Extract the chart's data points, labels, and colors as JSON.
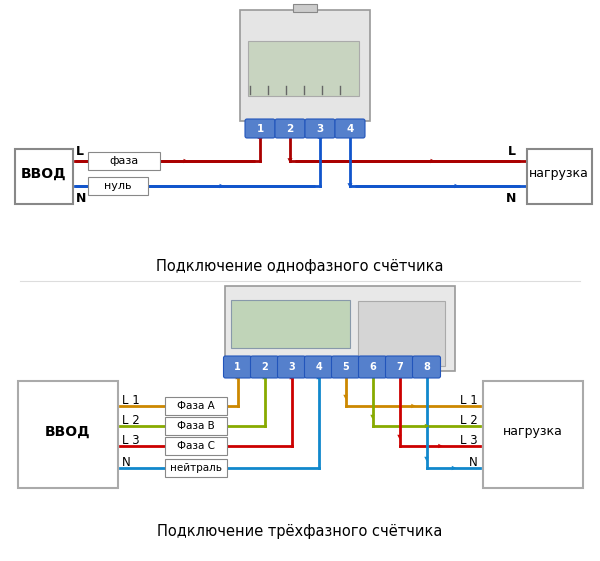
{
  "bg_color": "#ffffff",
  "title1": "Подключение однофазного счётчика",
  "title2": "Подключение трёхфазного счётчика",
  "title_fontsize": 10.5,
  "phase_color": "#aa0000",
  "neutral_color": "#1155cc",
  "phase_a_color": "#cc8800",
  "phase_b_color": "#88aa00",
  "phase_c_color": "#cc0000",
  "neutral3_color": "#1188cc",
  "vvod_label": "ВВОД",
  "nagruzka_label": "нагрузка",
  "L_label": "L",
  "N_label": "N",
  "faza_label": "фаза",
  "nul_label": "нуль",
  "L1_label": "L 1",
  "L2_label": "L 2",
  "L3_label": "L 3",
  "N3_label": "N",
  "faza_a_label": "Фаза А",
  "faza_b_label": "Фаза В",
  "faza_c_label": "Фаза С",
  "neytral_label": "нейтраль",
  "terminal_labels_1": [
    "1",
    "2",
    "3",
    "4"
  ],
  "terminal_labels_3": [
    "1",
    "2",
    "3",
    "4",
    "5",
    "6",
    "7",
    "8"
  ]
}
